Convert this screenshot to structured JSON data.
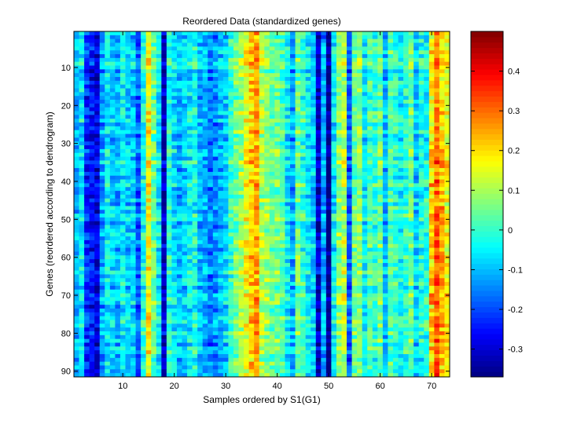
{
  "chart_data": [
    {
      "type": "heatmap",
      "title": "Reordered Data (standardized genes)",
      "xlabel": "Samples ordered by S1(G1)",
      "ylabel": "Genes (reordered according to dendrogram)",
      "n_cols": 73,
      "n_rows": 91,
      "xlim": [
        0.5,
        73.5
      ],
      "ylim": [
        0.5,
        91.5
      ],
      "y_reversed": true,
      "x_ticks": [
        10,
        20,
        30,
        40,
        50,
        60,
        70
      ],
      "y_ticks": [
        10,
        20,
        30,
        40,
        50,
        60,
        70,
        80,
        90
      ],
      "colormap": "jet",
      "clim": [
        -0.37,
        0.5
      ],
      "column_profile": [
        -0.1,
        -0.05,
        -0.22,
        -0.25,
        -0.28,
        -0.12,
        -0.05,
        -0.08,
        -0.1,
        -0.05,
        -0.08,
        -0.08,
        -0.18,
        -0.02,
        0.18,
        0.05,
        -0.05,
        -0.3,
        -0.02,
        -0.06,
        -0.1,
        -0.08,
        -0.05,
        -0.02,
        -0.1,
        -0.12,
        -0.16,
        -0.14,
        -0.1,
        -0.08,
        0.0,
        0.05,
        0.1,
        0.15,
        0.22,
        0.25,
        0.1,
        0.08,
        0.05,
        0.06,
        0.03,
        -0.05,
        -0.12,
        0.05,
        0.0,
        -0.05,
        -0.08,
        -0.3,
        -0.12,
        -0.36,
        -0.05,
        0.08,
        0.12,
        -0.18,
        0.05,
        0.08,
        -0.05,
        0.02,
        0.0,
        0.05,
        -0.1,
        0.02,
        0.0,
        -0.04,
        0.0,
        0.05,
        -0.08,
        -0.02,
        -0.05,
        0.18,
        0.28,
        0.2,
        0.15
      ],
      "row_profile_note": "",
      "colorbar": {
        "ticks": [
          0.4,
          0.3,
          0.2,
          0.1,
          0,
          -0.1,
          -0.2,
          -0.3
        ],
        "tick_labels": [
          "0.4",
          "0.3",
          "0.2",
          "0.1",
          "0",
          "-0.1",
          "-0.2",
          "-0.3"
        ]
      }
    }
  ]
}
